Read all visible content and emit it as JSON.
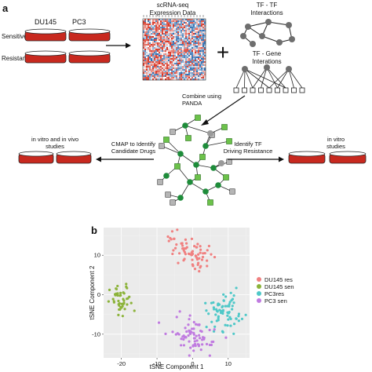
{
  "panel_a": {
    "label": "a",
    "cell_lines": [
      "DU145",
      "PC3"
    ],
    "conditions": [
      "Sensitive",
      "Resistant"
    ],
    "scrna": {
      "line1": "scRNA-seq",
      "line2": "Expression Data"
    },
    "tf_tf": {
      "line1": "TF - TF",
      "line2": "Interactions"
    },
    "tf_gene": {
      "line1": "TF - Gene",
      "line2": "Interations"
    },
    "plus": "+",
    "combine": {
      "line1": "Combine using",
      "line2": "PANDA"
    },
    "cmap": {
      "line1": "CMAP to Identify",
      "line2": "Candidate Drugs"
    },
    "identify": {
      "line1": "Identify TF",
      "line2": "Driving Resistance"
    },
    "invitro_vivo": {
      "line1": "in vitro and in vivo",
      "line2": "studies"
    },
    "invitro": {
      "line1": "in vitro",
      "line2": "studies"
    },
    "colors": {
      "dish_red": "#c8291f",
      "node_green": "#1e8c3a",
      "node_light_green": "#6cc24a",
      "node_gray": "#9a9a9a",
      "heat_red": "#d7301f",
      "heat_blue": "#2b6cb0"
    }
  },
  "panel_b": {
    "label": "b",
    "chart_data": {
      "type": "scatter",
      "xlabel": "tSNE Component 1",
      "ylabel": "tSNE Component 2",
      "xlim": [
        -25,
        16
      ],
      "ylim": [
        -16,
        17
      ],
      "xticks": [
        -20,
        -10,
        0,
        10
      ],
      "yticks": [
        -10,
        0,
        10
      ],
      "legend_position": "right",
      "series": [
        {
          "name": "DU145 res",
          "color": "#f08080",
          "center": [
            -1,
            11
          ],
          "n": 70
        },
        {
          "name": "DU145 sen",
          "color": "#8cb33a",
          "center": [
            -20,
            -2
          ],
          "n": 45
        },
        {
          "name": "PC3res",
          "color": "#4fc8c8",
          "center": [
            9,
            -4
          ],
          "n": 70
        },
        {
          "name": "PC3 sen",
          "color": "#c07be0",
          "center": [
            0,
            -11
          ],
          "n": 80
        }
      ]
    }
  }
}
